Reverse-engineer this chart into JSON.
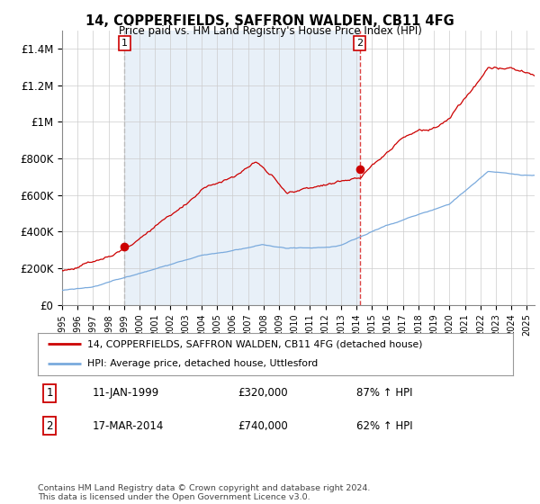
{
  "title": "14, COPPERFIELDS, SAFFRON WALDEN, CB11 4FG",
  "subtitle": "Price paid vs. HM Land Registry's House Price Index (HPI)",
  "legend_red": "14, COPPERFIELDS, SAFFRON WALDEN, CB11 4FG (detached house)",
  "legend_blue": "HPI: Average price, detached house, Uttlesford",
  "annotation1_label": "1",
  "annotation1_date": "11-JAN-1999",
  "annotation1_price": "£320,000",
  "annotation1_hpi": "87% ↑ HPI",
  "annotation2_label": "2",
  "annotation2_date": "17-MAR-2014",
  "annotation2_price": "£740,000",
  "annotation2_hpi": "62% ↑ HPI",
  "footer": "Contains HM Land Registry data © Crown copyright and database right 2024.\nThis data is licensed under the Open Government Licence v3.0.",
  "red_color": "#cc0000",
  "blue_color": "#7aaadd",
  "vline1_color": "#bbbbbb",
  "vline2_color": "#dd4444",
  "bg_shade_color": "#e8f0f8",
  "ylim": [
    0,
    1500000
  ],
  "yticks": [
    0,
    200000,
    400000,
    600000,
    800000,
    1000000,
    1200000,
    1400000
  ],
  "ytick_labels": [
    "£0",
    "£200K",
    "£400K",
    "£600K",
    "£800K",
    "£1M",
    "£1.2M",
    "£1.4M"
  ],
  "x_start_year": 1995.0,
  "x_end_year": 2025.5,
  "purchase1_year": 1999.03,
  "purchase1_value": 320000,
  "purchase2_year": 2014.21,
  "purchase2_value": 740000,
  "seed": 1234
}
